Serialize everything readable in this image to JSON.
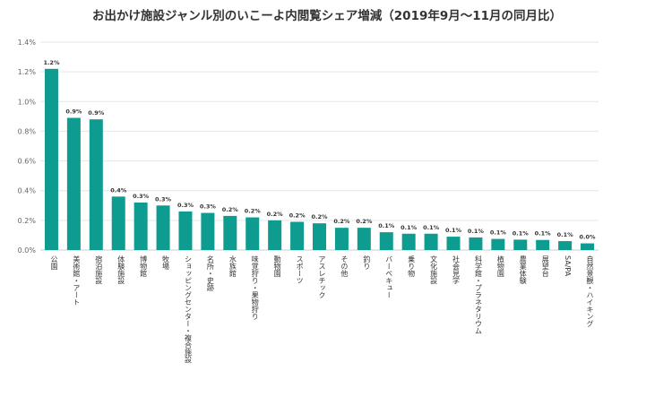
{
  "chart_data": {
    "type": "bar",
    "title": "お出かけ施設ジャンル別のいこーよ内閲覧シェア増減（2019年9月～11月の同月比）",
    "xlabel": "",
    "ylabel": "",
    "ylim": [
      0,
      1.4
    ],
    "y_ticks": [
      "0.0%",
      "0.2%",
      "0.4%",
      "0.6%",
      "0.8%",
      "1.0%",
      "1.2%",
      "1.4%"
    ],
    "grid": true,
    "legend": "none",
    "bar_color": "#0d9c8f",
    "categories": [
      "公園",
      "美術館・アート",
      "宿泊施設",
      "体験施設",
      "博物館",
      "牧場",
      "ショッピングセンター・複合施設",
      "名所・史跡",
      "水族館",
      "味覚狩り・果物狩り",
      "動物園",
      "スポーツ",
      "アスレチック",
      "その他",
      "釣り",
      "バーベキュー",
      "乗り物",
      "文化施設",
      "社会見学",
      "科学館・プラネタリウム",
      "植物園",
      "農業体験",
      "展望台",
      "SA/PA",
      "自然景観・ハイキング"
    ],
    "values": [
      1.22,
      0.89,
      0.88,
      0.36,
      0.32,
      0.3,
      0.26,
      0.25,
      0.23,
      0.22,
      0.2,
      0.19,
      0.18,
      0.15,
      0.15,
      0.12,
      0.11,
      0.11,
      0.09,
      0.085,
      0.075,
      0.07,
      0.068,
      0.06,
      0.045
    ],
    "data_labels": [
      "1.2%",
      "0.9%",
      "0.9%",
      "0.4%",
      "0.3%",
      "0.3%",
      "0.3%",
      "0.3%",
      "0.2%",
      "0.2%",
      "0.2%",
      "0.2%",
      "0.2%",
      "0.2%",
      "0.2%",
      "0.1%",
      "0.1%",
      "0.1%",
      "0.1%",
      "0.1%",
      "0.1%",
      "0.1%",
      "0.1%",
      "0.1%",
      "0.0%"
    ]
  }
}
